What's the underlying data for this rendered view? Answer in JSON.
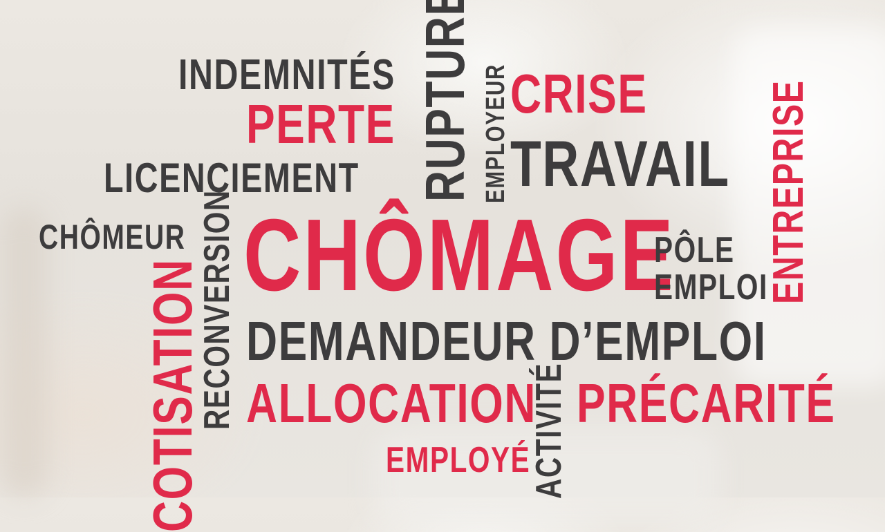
{
  "colors": {
    "accent": "#e02a4a",
    "text": "#3d3c3d",
    "background": "#ece8e2"
  },
  "words": {
    "indemnites": "INDEMNITÉS",
    "rupture": "RUPTURE",
    "employeur": "EMPLOYEUR",
    "crise": "CRISE",
    "perte": "PERTE",
    "travail": "TRAVAIL",
    "licenciement": "LICENCIEMENT",
    "entreprise": "ENTREPRISE",
    "chomeur": "CHÔMEUR",
    "reconversion": "RECONVERSION",
    "chomage": "CHÔMAGE",
    "pole": "PÔLE",
    "emploi": "EMPLOI",
    "cotisation": "COTISATION",
    "demandeur": "DEMANDEUR D’EMPLOI",
    "allocation": "ALLOCATION",
    "activite": "ACTIVITÉ",
    "precarite": "PRÉCARITÉ",
    "employe": "EMPLOYÉ"
  }
}
